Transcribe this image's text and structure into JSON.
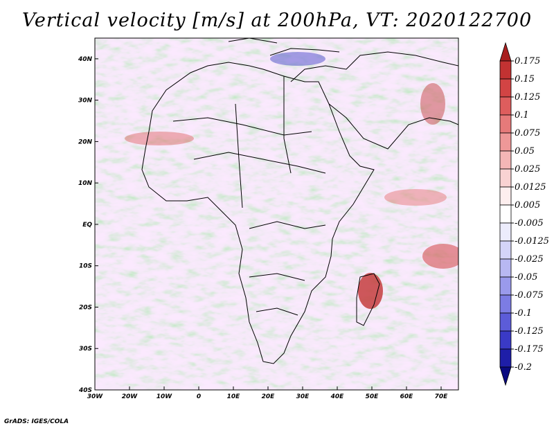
{
  "title": "Vertical velocity [m/s] at 200hPa, VT: 2020122700",
  "footer": "GrADS: IGES/COLA",
  "map": {
    "region": "Africa",
    "lon_range": [
      -30,
      75
    ],
    "lat_range": [
      -40,
      45
    ],
    "x_ticks": [
      "30W",
      "20W",
      "10W",
      "0",
      "10E",
      "20E",
      "30E",
      "40E",
      "50E",
      "60E",
      "70E"
    ],
    "y_ticks": [
      "40N",
      "30N",
      "20N",
      "10N",
      "EQ",
      "10S",
      "20S",
      "30S",
      "40S"
    ]
  },
  "colorbar": {
    "labels": [
      "0.175",
      "0.15",
      "0.125",
      "0.1",
      "0.075",
      "0.05",
      "0.025",
      "0.0125",
      "0.005",
      "-0.005",
      "-0.0125",
      "-0.025",
      "-0.05",
      "-0.075",
      "-0.1",
      "-0.125",
      "-0.175",
      "-0.2"
    ],
    "colors": [
      "#a81f1f",
      "#c23232",
      "#d24444",
      "#de5d5d",
      "#e67a7a",
      "#ee9898",
      "#f4b6b6",
      "#f9d2d2",
      "#fdeeee",
      "#ffffff",
      "#ececfc",
      "#d4d4f8",
      "#b8b8f2",
      "#9a9aec",
      "#7c7ce4",
      "#5c5cd8",
      "#3a3ac6",
      "#1e1ea8",
      "#0a0a80"
    ]
  }
}
